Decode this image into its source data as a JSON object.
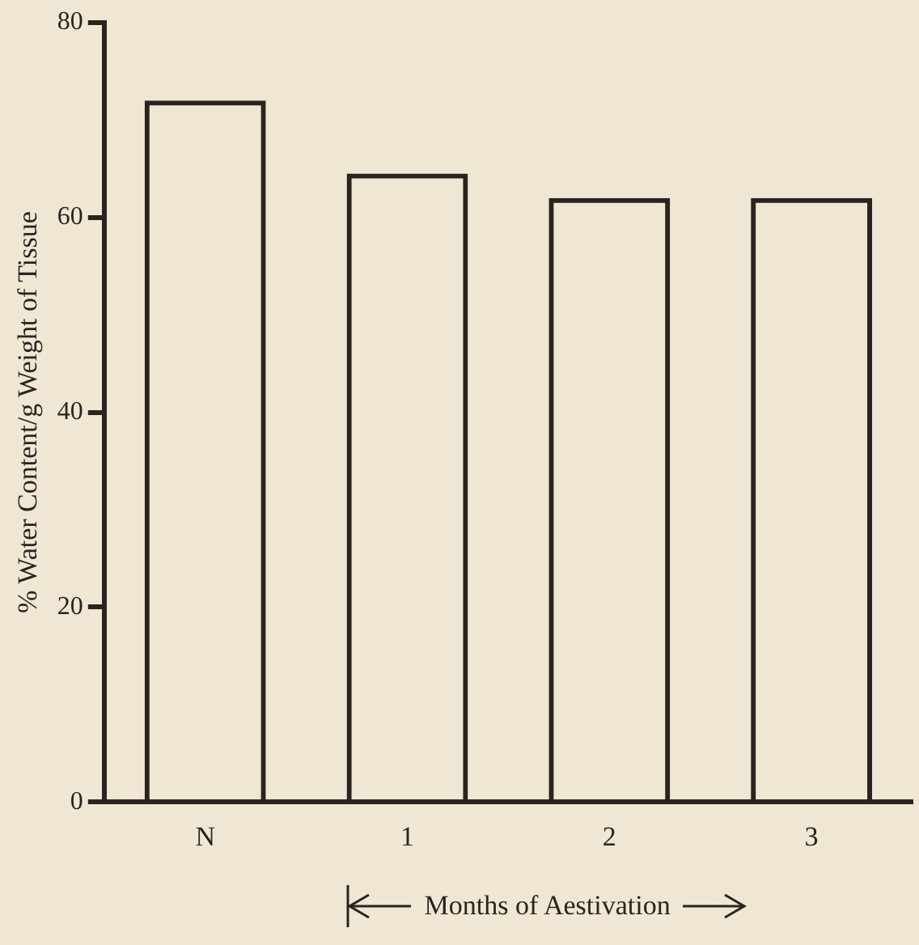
{
  "chart_data": {
    "type": "bar",
    "ylabel": "% Water Content/g Weight of Tissue",
    "categories": [
      "N",
      "1",
      "2",
      "3"
    ],
    "values": [
      72,
      64.5,
      62,
      62
    ],
    "color": "#2a2420",
    "ylim": [
      0,
      80
    ],
    "yticks": [
      0,
      20,
      40,
      60,
      80
    ],
    "grid": false,
    "legend": false,
    "annotations": [
      "Months of Aestivation"
    ]
  }
}
